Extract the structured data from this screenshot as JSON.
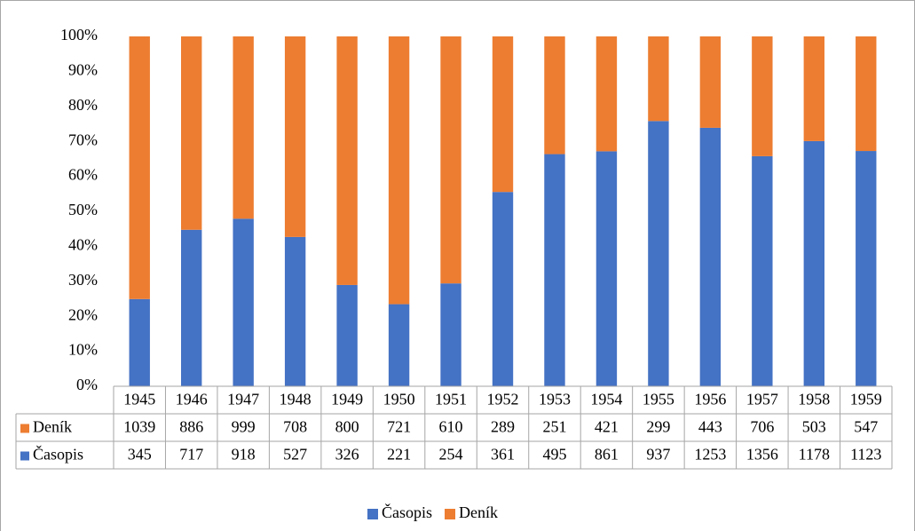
{
  "chart_data": {
    "type": "bar",
    "stacking": "percent",
    "categories": [
      "1945",
      "1946",
      "1947",
      "1948",
      "1949",
      "1950",
      "1951",
      "1952",
      "1953",
      "1954",
      "1955",
      "1956",
      "1957",
      "1958",
      "1959"
    ],
    "series": [
      {
        "name": "Časopis",
        "color": "#4472c4",
        "values": [
          345,
          717,
          918,
          527,
          326,
          221,
          254,
          361,
          495,
          861,
          937,
          1253,
          1356,
          1178,
          1123
        ]
      },
      {
        "name": "Deník",
        "color": "#ed7d31",
        "values": [
          1039,
          886,
          999,
          708,
          800,
          721,
          610,
          289,
          251,
          421,
          299,
          443,
          706,
          503,
          547
        ]
      }
    ],
    "ylim": [
      0,
      100
    ],
    "yticks": [
      {
        "value": 0,
        "label": "0%"
      },
      {
        "value": 10,
        "label": "10%"
      },
      {
        "value": 20,
        "label": "20%"
      },
      {
        "value": 30,
        "label": "30%"
      },
      {
        "value": 40,
        "label": "40%"
      },
      {
        "value": 50,
        "label": "50%"
      },
      {
        "value": 60,
        "label": "60%"
      },
      {
        "value": 70,
        "label": "70%"
      },
      {
        "value": 80,
        "label": "80%"
      },
      {
        "value": 90,
        "label": "90%"
      },
      {
        "value": 100,
        "label": "100%"
      }
    ],
    "grid": false,
    "data_table": true,
    "legend": "bottom"
  }
}
